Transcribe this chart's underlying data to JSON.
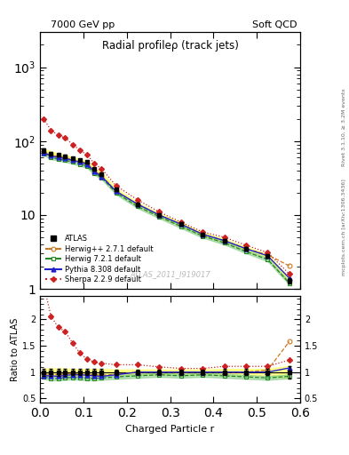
{
  "title": "Radial profileρ (track jets)",
  "top_left_label": "7000 GeV pp",
  "top_right_label": "Soft QCD",
  "right_label_top": "Rivet 3.1.10, ≥ 3.2M events",
  "right_label_bot": "mcplots.cern.ch [arXiv:1306.3436]",
  "watermark": "ATLAS_2011_I919017",
  "xlabel": "Charged Particle r",
  "ylabel_ratio": "Ratio to ATLAS",
  "r_values": [
    0.008,
    0.025,
    0.042,
    0.058,
    0.075,
    0.092,
    0.108,
    0.125,
    0.142,
    0.175,
    0.225,
    0.275,
    0.325,
    0.375,
    0.425,
    0.475,
    0.525,
    0.575
  ],
  "atlas_y": [
    75,
    68,
    65,
    62,
    58,
    55,
    52,
    42,
    36,
    22,
    14,
    10,
    7.5,
    5.5,
    4.5,
    3.5,
    2.8,
    1.3
  ],
  "atlas_yerr": [
    5,
    4,
    3,
    3,
    2.5,
    2,
    2,
    1.5,
    1.5,
    1.0,
    0.7,
    0.5,
    0.4,
    0.3,
    0.25,
    0.2,
    0.15,
    0.1
  ],
  "herwig_pp_y": [
    72,
    65,
    62,
    60,
    56,
    53,
    50,
    40,
    34,
    21,
    14,
    10,
    7.5,
    5.5,
    4.5,
    3.5,
    2.9,
    2.05
  ],
  "herwig72_y": [
    68,
    60,
    57,
    55,
    52,
    49,
    46,
    37,
    32,
    20,
    13,
    9.5,
    7.0,
    5.2,
    4.2,
    3.2,
    2.5,
    1.2
  ],
  "pythia_y": [
    70,
    63,
    60,
    58,
    55,
    52,
    49,
    39,
    33,
    21,
    14,
    10,
    7.5,
    5.5,
    4.5,
    3.5,
    2.8,
    1.4
  ],
  "sherpa_y": [
    200,
    140,
    120,
    110,
    90,
    75,
    65,
    50,
    42,
    25,
    16,
    11,
    8.0,
    5.9,
    5.0,
    3.9,
    3.1,
    1.6
  ],
  "herwig_pp_ratio": [
    0.96,
    0.96,
    0.95,
    0.97,
    0.97,
    0.97,
    0.96,
    0.95,
    0.94,
    0.96,
    1.0,
    1.0,
    1.0,
    1.0,
    1.0,
    1.0,
    1.04,
    1.58
  ],
  "herwig72_ratio": [
    0.91,
    0.88,
    0.88,
    0.89,
    0.9,
    0.89,
    0.88,
    0.88,
    0.89,
    0.91,
    0.93,
    0.95,
    0.93,
    0.95,
    0.93,
    0.91,
    0.89,
    0.92
  ],
  "pythia_ratio": [
    0.93,
    0.93,
    0.92,
    0.94,
    0.95,
    0.95,
    0.94,
    0.93,
    0.92,
    0.95,
    1.0,
    1.0,
    1.0,
    1.0,
    1.0,
    1.0,
    1.0,
    1.08
  ],
  "sherpa_ratio": [
    2.67,
    2.06,
    1.85,
    1.77,
    1.55,
    1.36,
    1.25,
    1.19,
    1.17,
    1.14,
    1.14,
    1.1,
    1.07,
    1.07,
    1.11,
    1.11,
    1.11,
    1.23
  ],
  "atlas_band_lo": [
    0.93,
    0.93,
    0.93,
    0.93,
    0.94,
    0.94,
    0.94,
    0.94,
    0.94,
    0.95,
    0.95,
    0.95,
    0.95,
    0.95,
    0.94,
    0.94,
    0.94,
    0.88
  ],
  "atlas_band_hi": [
    1.07,
    1.07,
    1.07,
    1.07,
    1.06,
    1.06,
    1.06,
    1.06,
    1.06,
    1.05,
    1.05,
    1.05,
    1.05,
    1.05,
    1.06,
    1.06,
    1.06,
    1.12
  ],
  "color_atlas": "#000000",
  "color_herwig_pp": "#cc7722",
  "color_herwig72": "#228822",
  "color_pythia": "#2222cc",
  "color_sherpa": "#cc2222",
  "color_atlas_band": "#ffff88",
  "color_herwig72_band": "#88cc88"
}
